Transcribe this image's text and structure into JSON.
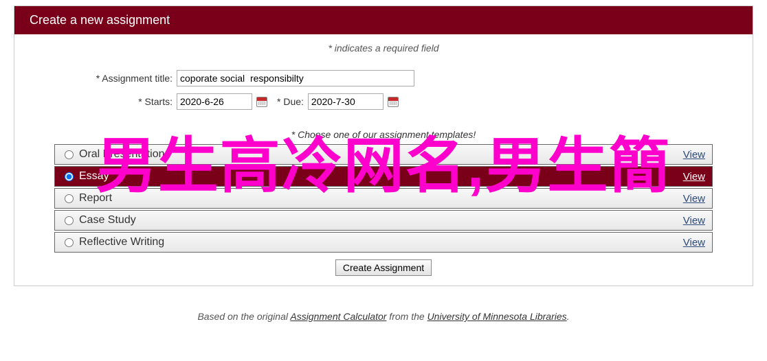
{
  "colors": {
    "brand": "#7a0019",
    "overlay": "#ff00cc"
  },
  "header": {
    "title": "Create a new assignment"
  },
  "form": {
    "required_note": "* indicates a required field",
    "title_label": "* Assignment title:",
    "title_value": "coporate social  responsibilty",
    "starts_label": "* Starts:",
    "starts_value": "2020-6-26",
    "due_label": "* Due:",
    "due_value": "2020-7-30"
  },
  "templates": {
    "note": "* Choose one of our assignment templates!",
    "view_label": "View",
    "items": [
      {
        "name": "Oral Presentation",
        "selected": false
      },
      {
        "name": "Essay",
        "selected": true
      },
      {
        "name": "Report",
        "selected": false
      },
      {
        "name": "Case Study",
        "selected": false
      },
      {
        "name": "Reflective Writing",
        "selected": false
      }
    ]
  },
  "submit_label": "Create Assignment",
  "footer": {
    "prefix": "Based on the original ",
    "link1": "Assignment Calculator",
    "middle": " from the ",
    "link2": "University of Minnesota Libraries",
    "suffix": "."
  },
  "overlay_text": "男生高冷网名,男生簡"
}
